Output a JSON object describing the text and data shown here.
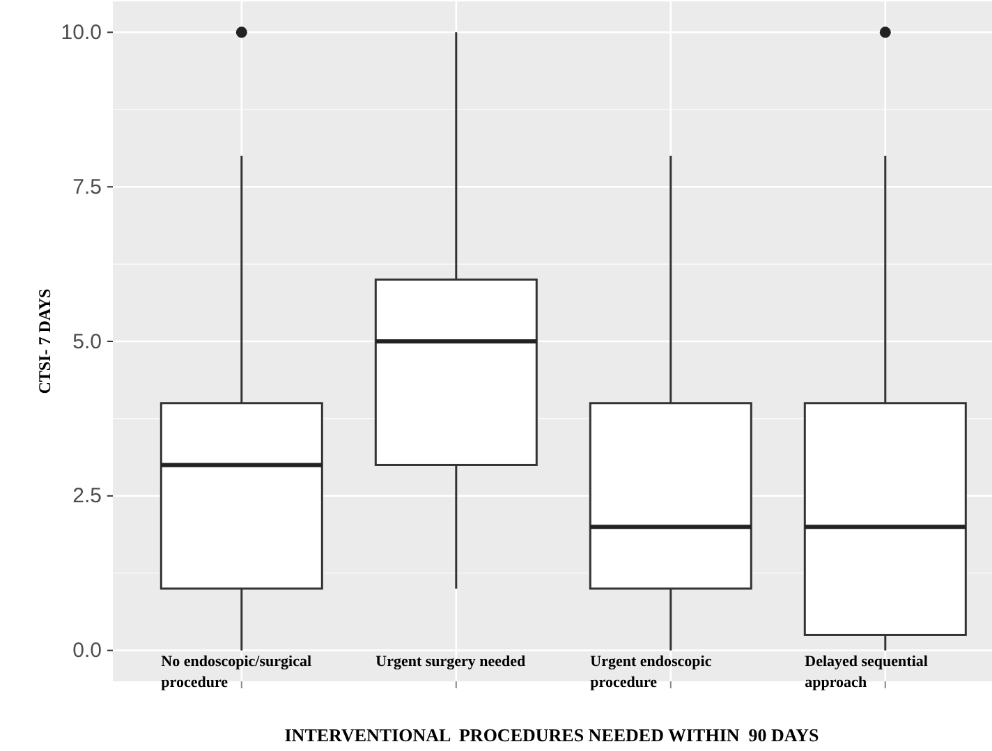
{
  "chart_data": {
    "type": "box",
    "categories": [
      "No endoscopic/surgical procedure",
      "Urgent surgery needed",
      "Urgent endoscopic procedure",
      "Delayed sequential approach"
    ],
    "boxes": [
      {
        "low": 0,
        "q1": 1,
        "median": 3,
        "q3": 4,
        "high": 8,
        "outliers": [
          10
        ]
      },
      {
        "low": 1,
        "q1": 3,
        "median": 5,
        "q3": 6,
        "high": 10
      },
      {
        "low": 0,
        "q1": 1,
        "median": 2,
        "q3": 4,
        "high": 8
      },
      {
        "low": 0,
        "q1": 0.25,
        "median": 2,
        "q3": 4,
        "high": 8,
        "outliers": [
          10
        ]
      }
    ],
    "xlabel": "INTERVENTIONAL  PROCEDURES NEEDED WITHIN  90 DAYS",
    "ylabel": "CTSI- 7 DAYS",
    "ylim": [
      -0.5,
      10.5
    ],
    "yticks": [
      {
        "value": 0,
        "label": "0.0"
      },
      {
        "value": 2.5,
        "label": "2.5"
      },
      {
        "value": 5,
        "label": "5.0"
      },
      {
        "value": 7.5,
        "label": "7.5"
      },
      {
        "value": 10,
        "label": "10.0"
      }
    ],
    "grid": true
  }
}
